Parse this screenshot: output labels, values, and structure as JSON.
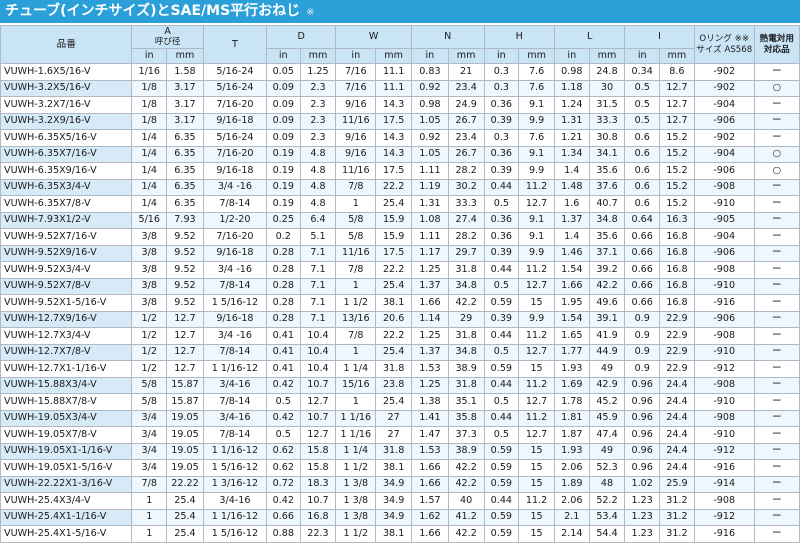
{
  "title": "チューブ(インチサイズ)とSAE/MS平行おねじ",
  "title_note": "※",
  "headers": {
    "part_no": "品番",
    "A": "A",
    "A_sub": "呼び径",
    "T": "T",
    "D": "D",
    "W": "W",
    "N": "N",
    "H": "H",
    "L": "L",
    "I": "I",
    "oring": "Oリング ※※ サイズ AS568",
    "heat": "熱電対用 対応品",
    "in": "in",
    "mm": "mm"
  },
  "rows": [
    [
      "VUWH-1.6X5/16-V",
      "1/16",
      "1.58",
      "5/16-24",
      "0.05",
      "1.25",
      "7/16",
      "11.1",
      "0.83",
      "21",
      "0.3",
      "7.6",
      "0.98",
      "24.8",
      "0.34",
      "8.6",
      "-902",
      "ー"
    ],
    [
      "VUWH-3.2X5/16-V",
      "1/8",
      "3.17",
      "5/16-24",
      "0.09",
      "2.3",
      "7/16",
      "11.1",
      "0.92",
      "23.4",
      "0.3",
      "7.6",
      "1.18",
      "30",
      "0.5",
      "12.7",
      "-902",
      "○"
    ],
    [
      "VUWH-3.2X7/16-V",
      "1/8",
      "3.17",
      "7/16-20",
      "0.09",
      "2.3",
      "9/16",
      "14.3",
      "0.98",
      "24.9",
      "0.36",
      "9.1",
      "1.24",
      "31.5",
      "0.5",
      "12.7",
      "-904",
      "ー"
    ],
    [
      "VUWH-3.2X9/16-V",
      "1/8",
      "3.17",
      "9/16-18",
      "0.09",
      "2.3",
      "11/16",
      "17.5",
      "1.05",
      "26.7",
      "0.39",
      "9.9",
      "1.31",
      "33.3",
      "0.5",
      "12.7",
      "-906",
      "ー"
    ],
    [
      "VUWH-6.35X5/16-V",
      "1/4",
      "6.35",
      "5/16-24",
      "0.09",
      "2.3",
      "9/16",
      "14.3",
      "0.92",
      "23.4",
      "0.3",
      "7.6",
      "1.21",
      "30.8",
      "0.6",
      "15.2",
      "-902",
      "ー"
    ],
    [
      "VUWH-6.35X7/16-V",
      "1/4",
      "6.35",
      "7/16-20",
      "0.19",
      "4.8",
      "9/16",
      "14.3",
      "1.05",
      "26.7",
      "0.36",
      "9.1",
      "1.34",
      "34.1",
      "0.6",
      "15.2",
      "-904",
      "○"
    ],
    [
      "VUWH-6.35X9/16-V",
      "1/4",
      "6.35",
      "9/16-18",
      "0.19",
      "4.8",
      "11/16",
      "17.5",
      "1.11",
      "28.2",
      "0.39",
      "9.9",
      "1.4",
      "35.6",
      "0.6",
      "15.2",
      "-906",
      "○"
    ],
    [
      "VUWH-6.35X3/4-V",
      "1/4",
      "6.35",
      "3/4 -16",
      "0.19",
      "4.8",
      "7/8",
      "22.2",
      "1.19",
      "30.2",
      "0.44",
      "11.2",
      "1.48",
      "37.6",
      "0.6",
      "15.2",
      "-908",
      "ー"
    ],
    [
      "VUWH-6.35X7/8-V",
      "1/4",
      "6.35",
      "7/8-14",
      "0.19",
      "4.8",
      "1",
      "25.4",
      "1.31",
      "33.3",
      "0.5",
      "12.7",
      "1.6",
      "40.7",
      "0.6",
      "15.2",
      "-910",
      "ー"
    ],
    [
      "VUWH-7.93X1/2-V",
      "5/16",
      "7.93",
      "1/2-20",
      "0.25",
      "6.4",
      "5/8",
      "15.9",
      "1.08",
      "27.4",
      "0.36",
      "9.1",
      "1.37",
      "34.8",
      "0.64",
      "16.3",
      "-905",
      "ー"
    ],
    [
      "VUWH-9.52X7/16-V",
      "3/8",
      "9.52",
      "7/16-20",
      "0.2",
      "5.1",
      "5/8",
      "15.9",
      "1.11",
      "28.2",
      "0.36",
      "9.1",
      "1.4",
      "35.6",
      "0.66",
      "16.8",
      "-904",
      "ー"
    ],
    [
      "VUWH-9.52X9/16-V",
      "3/8",
      "9.52",
      "9/16-18",
      "0.28",
      "7.1",
      "11/16",
      "17.5",
      "1.17",
      "29.7",
      "0.39",
      "9.9",
      "1.46",
      "37.1",
      "0.66",
      "16.8",
      "-906",
      "ー"
    ],
    [
      "VUWH-9.52X3/4-V",
      "3/8",
      "9.52",
      "3/4 -16",
      "0.28",
      "7.1",
      "7/8",
      "22.2",
      "1.25",
      "31.8",
      "0.44",
      "11.2",
      "1.54",
      "39.2",
      "0.66",
      "16.8",
      "-908",
      "ー"
    ],
    [
      "VUWH-9.52X7/8-V",
      "3/8",
      "9.52",
      "7/8-14",
      "0.28",
      "7.1",
      "1",
      "25.4",
      "1.37",
      "34.8",
      "0.5",
      "12.7",
      "1.66",
      "42.2",
      "0.66",
      "16.8",
      "-910",
      "ー"
    ],
    [
      "VUWH-9.52X1-5/16-V",
      "3/8",
      "9.52",
      "1 5/16-12",
      "0.28",
      "7.1",
      "1 1/2",
      "38.1",
      "1.66",
      "42.2",
      "0.59",
      "15",
      "1.95",
      "49.6",
      "0.66",
      "16.8",
      "-916",
      "ー"
    ],
    [
      "VUWH-12.7X9/16-V",
      "1/2",
      "12.7",
      "9/16-18",
      "0.28",
      "7.1",
      "13/16",
      "20.6",
      "1.14",
      "29",
      "0.39",
      "9.9",
      "1.54",
      "39.1",
      "0.9",
      "22.9",
      "-906",
      "ー"
    ],
    [
      "VUWH-12.7X3/4-V",
      "1/2",
      "12.7",
      "3/4 -16",
      "0.41",
      "10.4",
      "7/8",
      "22.2",
      "1.25",
      "31.8",
      "0.44",
      "11.2",
      "1.65",
      "41.9",
      "0.9",
      "22.9",
      "-908",
      "ー"
    ],
    [
      "VUWH-12.7X7/8-V",
      "1/2",
      "12.7",
      "7/8-14",
      "0.41",
      "10.4",
      "1",
      "25.4",
      "1.37",
      "34.8",
      "0.5",
      "12.7",
      "1.77",
      "44.9",
      "0.9",
      "22.9",
      "-910",
      "ー"
    ],
    [
      "VUWH-12.7X1-1/16-V",
      "1/2",
      "12.7",
      "1 1/16-12",
      "0.41",
      "10.4",
      "1 1/4",
      "31.8",
      "1.53",
      "38.9",
      "0.59",
      "15",
      "1.93",
      "49",
      "0.9",
      "22.9",
      "-912",
      "ー"
    ],
    [
      "VUWH-15.88X3/4-V",
      "5/8",
      "15.87",
      "3/4-16",
      "0.42",
      "10.7",
      "15/16",
      "23.8",
      "1.25",
      "31.8",
      "0.44",
      "11.2",
      "1.69",
      "42.9",
      "0.96",
      "24.4",
      "-908",
      "ー"
    ],
    [
      "VUWH-15.88X7/8-V",
      "5/8",
      "15.87",
      "7/8-14",
      "0.5",
      "12.7",
      "1",
      "25.4",
      "1.38",
      "35.1",
      "0.5",
      "12.7",
      "1.78",
      "45.2",
      "0.96",
      "24.4",
      "-910",
      "ー"
    ],
    [
      "VUWH-19.05X3/4-V",
      "3/4",
      "19.05",
      "3/4-16",
      "0.42",
      "10.7",
      "1 1/16",
      "27",
      "1.41",
      "35.8",
      "0.44",
      "11.2",
      "1.81",
      "45.9",
      "0.96",
      "24.4",
      "-908",
      "ー"
    ],
    [
      "VUWH-19.05X7/8-V",
      "3/4",
      "19.05",
      "7/8-14",
      "0.5",
      "12.7",
      "1 1/16",
      "27",
      "1.47",
      "37.3",
      "0.5",
      "12.7",
      "1.87",
      "47.4",
      "0.96",
      "24.4",
      "-910",
      "ー"
    ],
    [
      "VUWH-19.05X1-1/16-V",
      "3/4",
      "19.05",
      "1 1/16-12",
      "0.62",
      "15.8",
      "1 1/4",
      "31.8",
      "1.53",
      "38.9",
      "0.59",
      "15",
      "1.93",
      "49",
      "0.96",
      "24.4",
      "-912",
      "ー"
    ],
    [
      "VUWH-19.05X1-5/16-V",
      "3/4",
      "19.05",
      "1 5/16-12",
      "0.62",
      "15.8",
      "1 1/2",
      "38.1",
      "1.66",
      "42.2",
      "0.59",
      "15",
      "2.06",
      "52.3",
      "0.96",
      "24.4",
      "-916",
      "ー"
    ],
    [
      "VUWH-22.22X1-3/16-V",
      "7/8",
      "22.22",
      "1 3/16-12",
      "0.72",
      "18.3",
      "1 3/8",
      "34.9",
      "1.66",
      "42.2",
      "0.59",
      "15",
      "1.89",
      "48",
      "1.02",
      "25.9",
      "-914",
      "ー"
    ],
    [
      "VUWH-25.4X3/4-V",
      "1",
      "25.4",
      "3/4-16",
      "0.42",
      "10.7",
      "1 3/8",
      "34.9",
      "1.57",
      "40",
      "0.44",
      "11.2",
      "2.06",
      "52.2",
      "1.23",
      "31.2",
      "-908",
      "ー"
    ],
    [
      "VUWH-25.4X1-1/16-V",
      "1",
      "25.4",
      "1 1/16-12",
      "0.66",
      "16.8",
      "1 3/8",
      "34.9",
      "1.62",
      "41.2",
      "0.59",
      "15",
      "2.1",
      "53.4",
      "1.23",
      "31.2",
      "-912",
      "ー"
    ],
    [
      "VUWH-25.4X1-5/16-V",
      "1",
      "25.4",
      "1 5/16-12",
      "0.88",
      "22.3",
      "1 1/2",
      "38.1",
      "1.66",
      "42.2",
      "0.59",
      "15",
      "2.14",
      "54.4",
      "1.23",
      "31.2",
      "-916",
      "ー"
    ]
  ]
}
